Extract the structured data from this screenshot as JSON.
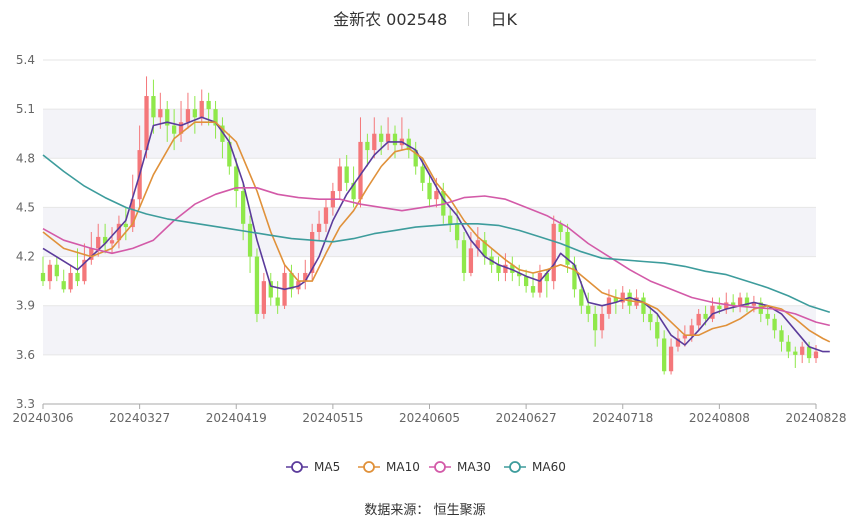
{
  "header": {
    "stock_name": "金新农",
    "stock_code": "002548",
    "period": "日K"
  },
  "footer": {
    "source_label": "数据来源：",
    "source_value": "恒生聚源"
  },
  "colors": {
    "up": "#f4777a",
    "down": "#8fe84a",
    "ma5": "#5b3b9b",
    "ma10": "#e0913a",
    "ma30": "#d35aa8",
    "ma60": "#3d9c9c",
    "band": "#f3f3f8",
    "grid": "#e6e6e6"
  },
  "chart_data": {
    "type": "candlestick",
    "y_ticks": [
      "5.4",
      "5.1",
      "4.8",
      "4.5",
      "4.2",
      "3.9",
      "3.6",
      "3.3"
    ],
    "ylim": [
      3.3,
      5.4
    ],
    "x_ticks": [
      "20240306",
      "20240327",
      "20240419",
      "20240515",
      "20240605",
      "20240627",
      "20240718",
      "20240808",
      "20240828"
    ],
    "legend": [
      "MA5",
      "MA10",
      "MA30",
      "MA60"
    ],
    "legend_position": "bottom",
    "candles": [
      [
        4.1,
        4.05,
        4.2,
        4.02
      ],
      [
        4.05,
        4.15,
        4.18,
        4.0
      ],
      [
        4.15,
        4.08,
        4.2,
        4.05
      ],
      [
        4.05,
        4.0,
        4.12,
        3.98
      ],
      [
        4.0,
        4.1,
        4.15,
        3.98
      ],
      [
        4.1,
        4.05,
        4.25,
        4.02
      ],
      [
        4.05,
        4.18,
        4.28,
        4.03
      ],
      [
        4.18,
        4.25,
        4.35,
        4.15
      ],
      [
        4.25,
        4.32,
        4.4,
        4.2
      ],
      [
        4.32,
        4.28,
        4.4,
        4.22
      ],
      [
        4.28,
        4.3,
        4.38,
        4.22
      ],
      [
        4.3,
        4.4,
        4.45,
        4.25
      ],
      [
        4.4,
        4.38,
        4.5,
        4.3
      ],
      [
        4.38,
        4.55,
        4.7,
        4.35
      ],
      [
        4.55,
        4.85,
        5.0,
        4.5
      ],
      [
        4.85,
        5.18,
        5.3,
        4.8
      ],
      [
        5.18,
        5.05,
        5.28,
        4.95
      ],
      [
        5.05,
        5.1,
        5.2,
        4.98
      ],
      [
        5.1,
        5.0,
        5.15,
        4.9
      ],
      [
        5.0,
        4.95,
        5.1,
        4.85
      ],
      [
        4.95,
        5.02,
        5.15,
        4.9
      ],
      [
        5.02,
        5.1,
        5.2,
        4.98
      ],
      [
        5.1,
        5.05,
        5.18,
        4.95
      ],
      [
        5.05,
        5.15,
        5.22,
        5.0
      ],
      [
        5.15,
        5.1,
        5.2,
        5.0
      ],
      [
        5.1,
        5.0,
        5.15,
        4.92
      ],
      [
        5.0,
        4.9,
        5.05,
        4.8
      ],
      [
        4.9,
        4.75,
        4.95,
        4.7
      ],
      [
        4.75,
        4.6,
        4.8,
        4.5
      ],
      [
        4.6,
        4.4,
        4.65,
        4.3
      ],
      [
        4.4,
        4.2,
        4.45,
        4.1
      ],
      [
        4.2,
        3.85,
        4.25,
        3.8
      ],
      [
        3.85,
        4.05,
        4.1,
        3.82
      ],
      [
        4.05,
        3.95,
        4.1,
        3.9
      ],
      [
        3.95,
        3.9,
        4.05,
        3.85
      ],
      [
        3.9,
        4.1,
        4.15,
        3.88
      ],
      [
        4.1,
        4.0,
        4.15,
        3.95
      ],
      [
        4.0,
        4.05,
        4.1,
        3.97
      ],
      [
        4.05,
        4.1,
        4.18,
        4.0
      ],
      [
        4.1,
        4.35,
        4.4,
        4.05
      ],
      [
        4.35,
        4.4,
        4.48,
        4.3
      ],
      [
        4.4,
        4.5,
        4.55,
        4.35
      ],
      [
        4.5,
        4.6,
        4.65,
        4.45
      ],
      [
        4.6,
        4.75,
        4.8,
        4.55
      ],
      [
        4.75,
        4.65,
        4.82,
        4.6
      ],
      [
        4.65,
        4.55,
        4.75,
        4.5
      ],
      [
        4.55,
        4.9,
        5.05,
        4.5
      ],
      [
        4.9,
        4.85,
        4.95,
        4.75
      ],
      [
        4.85,
        4.95,
        5.05,
        4.8
      ],
      [
        4.95,
        4.9,
        5.0,
        4.82
      ],
      [
        4.9,
        4.95,
        5.05,
        4.85
      ],
      [
        4.95,
        4.88,
        5.0,
        4.8
      ],
      [
        4.88,
        4.92,
        5.05,
        4.85
      ],
      [
        4.92,
        4.85,
        4.98,
        4.8
      ],
      [
        4.85,
        4.75,
        4.9,
        4.7
      ],
      [
        4.75,
        4.65,
        4.8,
        4.6
      ],
      [
        4.65,
        4.55,
        4.7,
        4.5
      ],
      [
        4.55,
        4.6,
        4.68,
        4.5
      ],
      [
        4.6,
        4.45,
        4.65,
        4.4
      ],
      [
        4.45,
        4.4,
        4.5,
        4.35
      ],
      [
        4.4,
        4.3,
        4.48,
        4.25
      ],
      [
        4.3,
        4.1,
        4.35,
        4.05
      ],
      [
        4.1,
        4.25,
        4.35,
        4.08
      ],
      [
        4.25,
        4.3,
        4.38,
        4.2
      ],
      [
        4.3,
        4.2,
        4.35,
        4.15
      ],
      [
        4.2,
        4.15,
        4.25,
        4.1
      ],
      [
        4.15,
        4.1,
        4.2,
        4.05
      ],
      [
        4.1,
        4.15,
        4.22,
        4.05
      ],
      [
        4.15,
        4.1,
        4.2,
        4.05
      ],
      [
        4.1,
        4.08,
        4.15,
        4.02
      ],
      [
        4.08,
        4.02,
        4.12,
        3.98
      ],
      [
        4.02,
        3.98,
        4.1,
        3.95
      ],
      [
        3.98,
        4.1,
        4.15,
        3.95
      ],
      [
        4.1,
        4.05,
        4.12,
        3.95
      ],
      [
        4.05,
        4.4,
        4.45,
        4.0
      ],
      [
        4.4,
        4.35,
        4.42,
        4.3
      ],
      [
        4.35,
        4.15,
        4.4,
        4.1
      ],
      [
        4.15,
        4.0,
        4.2,
        3.95
      ],
      [
        4.0,
        3.9,
        4.05,
        3.85
      ],
      [
        3.9,
        3.85,
        3.98,
        3.8
      ],
      [
        3.85,
        3.75,
        3.9,
        3.65
      ],
      [
        3.75,
        3.85,
        3.9,
        3.7
      ],
      [
        3.85,
        3.95,
        4.0,
        3.82
      ],
      [
        3.95,
        3.92,
        4.0,
        3.85
      ],
      [
        3.92,
        3.98,
        4.02,
        3.88
      ],
      [
        3.98,
        3.9,
        4.0,
        3.85
      ],
      [
        3.9,
        3.95,
        4.0,
        3.88
      ],
      [
        3.95,
        3.85,
        3.98,
        3.8
      ],
      [
        3.85,
        3.8,
        3.9,
        3.75
      ],
      [
        3.8,
        3.7,
        3.85,
        3.65
      ],
      [
        3.7,
        3.5,
        3.75,
        3.48
      ],
      [
        3.5,
        3.65,
        3.7,
        3.48
      ],
      [
        3.65,
        3.7,
        3.75,
        3.62
      ],
      [
        3.7,
        3.72,
        3.78,
        3.65
      ],
      [
        3.72,
        3.78,
        3.82,
        3.68
      ],
      [
        3.78,
        3.85,
        3.88,
        3.75
      ],
      [
        3.85,
        3.82,
        3.9,
        3.78
      ],
      [
        3.82,
        3.9,
        3.95,
        3.8
      ],
      [
        3.9,
        3.88,
        3.95,
        3.85
      ],
      [
        3.88,
        3.92,
        3.98,
        3.85
      ],
      [
        3.92,
        3.9,
        3.97,
        3.86
      ],
      [
        3.9,
        3.95,
        3.98,
        3.86
      ],
      [
        3.95,
        3.9,
        3.98,
        3.86
      ],
      [
        3.9,
        3.92,
        3.96,
        3.86
      ],
      [
        3.92,
        3.85,
        3.95,
        3.8
      ],
      [
        3.85,
        3.82,
        3.9,
        3.78
      ],
      [
        3.82,
        3.75,
        3.85,
        3.7
      ],
      [
        3.75,
        3.68,
        3.78,
        3.62
      ],
      [
        3.68,
        3.62,
        3.72,
        3.58
      ],
      [
        3.62,
        3.6,
        3.65,
        3.52
      ],
      [
        3.6,
        3.65,
        3.68,
        3.55
      ],
      [
        3.65,
        3.58,
        3.68,
        3.55
      ],
      [
        3.58,
        3.62,
        3.66,
        3.55
      ]
    ],
    "ma5": [
      [
        0,
        4.25
      ],
      [
        5,
        4.12
      ],
      [
        9,
        4.28
      ],
      [
        12,
        4.42
      ],
      [
        14,
        4.7
      ],
      [
        16,
        5.0
      ],
      [
        18,
        5.02
      ],
      [
        20,
        5.0
      ],
      [
        23,
        5.05
      ],
      [
        25,
        5.02
      ],
      [
        27,
        4.9
      ],
      [
        29,
        4.65
      ],
      [
        31,
        4.3
      ],
      [
        33,
        4.02
      ],
      [
        35,
        4.0
      ],
      [
        37,
        4.02
      ],
      [
        38,
        4.05
      ],
      [
        40,
        4.2
      ],
      [
        42,
        4.42
      ],
      [
        44,
        4.58
      ],
      [
        46,
        4.7
      ],
      [
        48,
        4.82
      ],
      [
        50,
        4.9
      ],
      [
        52,
        4.9
      ],
      [
        54,
        4.85
      ],
      [
        56,
        4.7
      ],
      [
        58,
        4.55
      ],
      [
        60,
        4.45
      ],
      [
        62,
        4.3
      ],
      [
        64,
        4.2
      ],
      [
        66,
        4.15
      ],
      [
        68,
        4.12
      ],
      [
        70,
        4.08
      ],
      [
        72,
        4.05
      ],
      [
        74,
        4.15
      ],
      [
        75,
        4.22
      ],
      [
        77,
        4.15
      ],
      [
        79,
        3.92
      ],
      [
        81,
        3.9
      ],
      [
        83,
        3.92
      ],
      [
        85,
        3.95
      ],
      [
        87,
        3.92
      ],
      [
        89,
        3.85
      ],
      [
        91,
        3.72
      ],
      [
        93,
        3.66
      ],
      [
        95,
        3.75
      ],
      [
        97,
        3.85
      ],
      [
        99,
        3.88
      ],
      [
        101,
        3.9
      ],
      [
        103,
        3.92
      ],
      [
        105,
        3.9
      ],
      [
        107,
        3.85
      ],
      [
        109,
        3.75
      ],
      [
        111,
        3.65
      ],
      [
        113,
        3.62
      ],
      [
        114,
        3.62
      ]
    ],
    "ma10": [
      [
        0,
        4.35
      ],
      [
        3,
        4.25
      ],
      [
        7,
        4.2
      ],
      [
        10,
        4.25
      ],
      [
        13,
        4.4
      ],
      [
        16,
        4.7
      ],
      [
        19,
        4.92
      ],
      [
        22,
        5.02
      ],
      [
        25,
        5.02
      ],
      [
        28,
        4.9
      ],
      [
        31,
        4.6
      ],
      [
        33,
        4.35
      ],
      [
        35,
        4.15
      ],
      [
        37,
        4.05
      ],
      [
        39,
        4.05
      ],
      [
        41,
        4.22
      ],
      [
        43,
        4.38
      ],
      [
        45,
        4.48
      ],
      [
        47,
        4.62
      ],
      [
        49,
        4.75
      ],
      [
        51,
        4.84
      ],
      [
        53,
        4.86
      ],
      [
        55,
        4.8
      ],
      [
        57,
        4.65
      ],
      [
        59,
        4.55
      ],
      [
        61,
        4.42
      ],
      [
        63,
        4.32
      ],
      [
        65,
        4.25
      ],
      [
        67,
        4.18
      ],
      [
        69,
        4.12
      ],
      [
        71,
        4.1
      ],
      [
        73,
        4.12
      ],
      [
        75,
        4.15
      ],
      [
        77,
        4.12
      ],
      [
        79,
        4.05
      ],
      [
        81,
        3.98
      ],
      [
        83,
        3.95
      ],
      [
        85,
        3.93
      ],
      [
        87,
        3.92
      ],
      [
        89,
        3.88
      ],
      [
        91,
        3.8
      ],
      [
        93,
        3.72
      ],
      [
        95,
        3.72
      ],
      [
        97,
        3.76
      ],
      [
        99,
        3.78
      ],
      [
        101,
        3.82
      ],
      [
        103,
        3.88
      ],
      [
        105,
        3.9
      ],
      [
        107,
        3.88
      ],
      [
        109,
        3.82
      ],
      [
        111,
        3.75
      ],
      [
        113,
        3.7
      ],
      [
        114,
        3.68
      ]
    ],
    "ma30": [
      [
        0,
        4.37
      ],
      [
        3,
        4.3
      ],
      [
        7,
        4.25
      ],
      [
        10,
        4.22
      ],
      [
        13,
        4.25
      ],
      [
        16,
        4.3
      ],
      [
        19,
        4.42
      ],
      [
        22,
        4.52
      ],
      [
        25,
        4.58
      ],
      [
        28,
        4.62
      ],
      [
        31,
        4.62
      ],
      [
        34,
        4.58
      ],
      [
        37,
        4.56
      ],
      [
        40,
        4.55
      ],
      [
        43,
        4.55
      ],
      [
        46,
        4.52
      ],
      [
        49,
        4.5
      ],
      [
        52,
        4.48
      ],
      [
        55,
        4.5
      ],
      [
        58,
        4.52
      ],
      [
        61,
        4.56
      ],
      [
        64,
        4.57
      ],
      [
        67,
        4.55
      ],
      [
        70,
        4.5
      ],
      [
        73,
        4.45
      ],
      [
        76,
        4.38
      ],
      [
        79,
        4.28
      ],
      [
        82,
        4.2
      ],
      [
        85,
        4.12
      ],
      [
        88,
        4.05
      ],
      [
        91,
        4.0
      ],
      [
        94,
        3.95
      ],
      [
        97,
        3.92
      ],
      [
        100,
        3.9
      ],
      [
        103,
        3.89
      ],
      [
        106,
        3.88
      ],
      [
        109,
        3.85
      ],
      [
        112,
        3.8
      ],
      [
        114,
        3.78
      ]
    ],
    "ma60": [
      [
        0,
        4.82
      ],
      [
        3,
        4.72
      ],
      [
        6,
        4.63
      ],
      [
        9,
        4.56
      ],
      [
        12,
        4.5
      ],
      [
        15,
        4.46
      ],
      [
        18,
        4.43
      ],
      [
        21,
        4.41
      ],
      [
        24,
        4.39
      ],
      [
        27,
        4.37
      ],
      [
        30,
        4.35
      ],
      [
        33,
        4.33
      ],
      [
        36,
        4.31
      ],
      [
        39,
        4.3
      ],
      [
        42,
        4.29
      ],
      [
        45,
        4.31
      ],
      [
        48,
        4.34
      ],
      [
        51,
        4.36
      ],
      [
        54,
        4.38
      ],
      [
        57,
        4.39
      ],
      [
        60,
        4.4
      ],
      [
        63,
        4.4
      ],
      [
        66,
        4.39
      ],
      [
        69,
        4.36
      ],
      [
        72,
        4.32
      ],
      [
        75,
        4.28
      ],
      [
        78,
        4.23
      ],
      [
        81,
        4.19
      ],
      [
        84,
        4.18
      ],
      [
        87,
        4.17
      ],
      [
        90,
        4.16
      ],
      [
        93,
        4.14
      ],
      [
        96,
        4.11
      ],
      [
        99,
        4.09
      ],
      [
        102,
        4.05
      ],
      [
        105,
        4.01
      ],
      [
        108,
        3.96
      ],
      [
        111,
        3.9
      ],
      [
        114,
        3.86
      ]
    ]
  }
}
